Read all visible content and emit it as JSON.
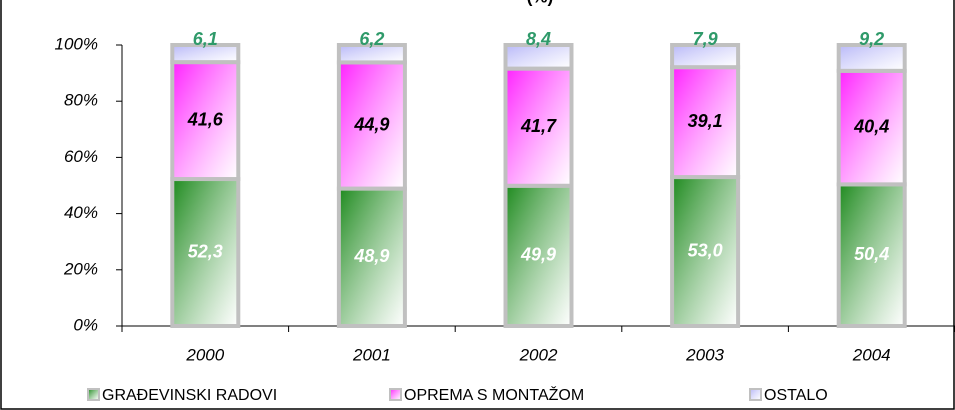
{
  "chart_data": {
    "type": "bar",
    "stacked": true,
    "title": "(%)",
    "categories": [
      "2000",
      "2001",
      "2002",
      "2003",
      "2004"
    ],
    "series": [
      {
        "name": "GRAĐEVINSKI RADOVI",
        "color": "#1e8a1e",
        "values": [
          52.3,
          48.9,
          49.9,
          53.0,
          50.4
        ],
        "value_labels": [
          "52,3",
          "48,9",
          "49,9",
          "53,0",
          "50,4"
        ]
      },
      {
        "name": "OPREMA S MONTAŽOM",
        "color": "#ff22ff",
        "values": [
          41.6,
          44.9,
          41.7,
          39.1,
          40.4
        ],
        "value_labels": [
          "41,6",
          "44,9",
          "41,7",
          "39,1",
          "40,4"
        ]
      },
      {
        "name": "OSTALO",
        "color": "#b8b8f8",
        "values": [
          6.1,
          6.2,
          8.4,
          7.9,
          9.2
        ],
        "value_labels": [
          "6,1",
          "6,2",
          "8,4",
          "7,9",
          "9,2"
        ]
      }
    ],
    "ylim": [
      0,
      100
    ],
    "yticks": [
      {
        "value": 0,
        "label": "0%"
      },
      {
        "value": 20,
        "label": "20%"
      },
      {
        "value": 40,
        "label": "40%"
      },
      {
        "value": 60,
        "label": "60%"
      },
      {
        "value": 80,
        "label": "80%"
      },
      {
        "value": 100,
        "label": "100%"
      }
    ],
    "legend": "bottom",
    "grid": false
  }
}
